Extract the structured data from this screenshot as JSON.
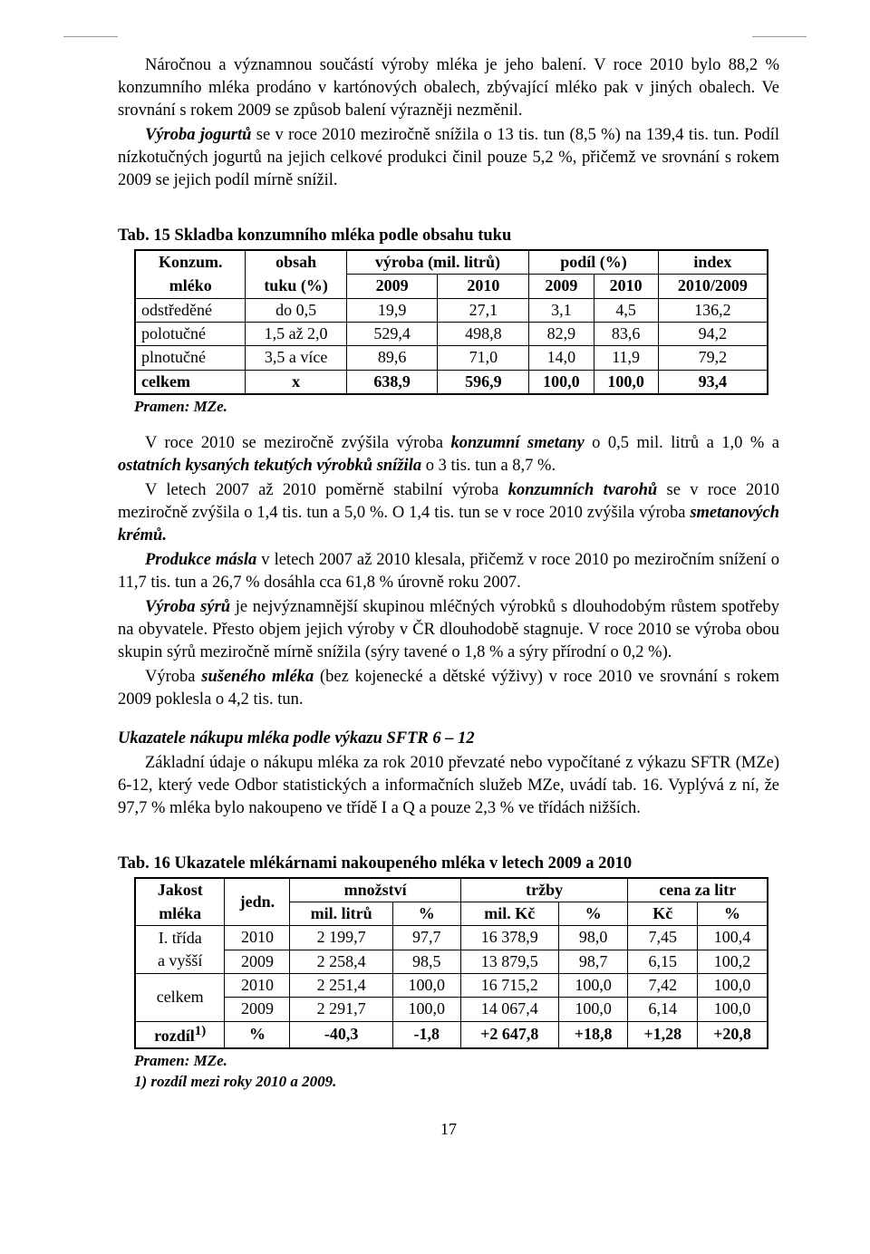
{
  "para1": "Náročnou a významnou součástí výroby mléka je jeho balení. V roce 2010 bylo 88,2 % konzumního mléka prodáno v kartónových obalech, zbývající mléko pak v jiných obalech. Ve srovnání s rokem 2009 se způsob balení výrazněji nezměnil.",
  "para2_pre": "",
  "para2_em1": "Výroba jogurtů",
  "para2_rest": " se v roce 2010 meziročně snížila o 13 tis. tun (8,5 %) na 139,4 tis. tun. Podíl nízkotučných jogurtů na jejich celkové produkci činil pouze 5,2 %, přičemž ve srovnání s rokem 2009 se jejich podíl mírně snížil.",
  "t15_title": "Tab. 15  Skladba konzumního mléka podle obsahu tuku",
  "t15": {
    "h1_col1a": "Konzum.",
    "h1_col1b": "mléko",
    "h1_col2a": "obsah",
    "h1_col2b": "tuku (%)",
    "h1_prod": "výroba (mil. litrů)",
    "h1_share": "podíl (%)",
    "h1_index": "index",
    "h2_2009": "2009",
    "h2_2010": "2010",
    "h2_index": "2010/2009",
    "rows": [
      {
        "name": "odstředěné",
        "fat": "do 0,5",
        "p09": "19,9",
        "p10": "27,1",
        "s09": "3,1",
        "s10": "4,5",
        "idx": "136,2"
      },
      {
        "name": "polotučné",
        "fat": "1,5 až 2,0",
        "p09": "529,4",
        "p10": "498,8",
        "s09": "82,9",
        "s10": "83,6",
        "idx": "94,2"
      },
      {
        "name": "plnotučné",
        "fat": "3,5 a více",
        "p09": "89,6",
        "p10": "71,0",
        "s09": "14,0",
        "s10": "11,9",
        "idx": "79,2"
      }
    ],
    "total": {
      "name": "celkem",
      "fat": "x",
      "p09": "638,9",
      "p10": "596,9",
      "s09": "100,0",
      "s10": "100,0",
      "idx": "93,4"
    }
  },
  "source": "Pramen: MZe.",
  "para3_a": "V roce 2010 se meziročně zvýšila výroba ",
  "para3_em1": "konzumní smetany",
  "para3_b": " o 0,5 mil. litrů a 1,0 % a ",
  "para3_em2": "ostatních kysaných tekutých výrobků snížila",
  "para3_c": " o 3 tis. tun a 8,7 %.",
  "para4_a": "V letech 2007 až 2010 poměrně stabilní výroba ",
  "para4_em1": "konzumních tvarohů",
  "para4_b": " se v roce 2010 meziročně zvýšila o 1,4 tis. tun a 5,0 %. O 1,4 tis. tun se v roce 2010 zvýšila výroba ",
  "para4_em2": "smetanových krémů.",
  "para5_em1": "Produkce másla",
  "para5_rest": " v letech 2007 až 2010 klesala, přičemž v roce 2010 po meziročním snížení o 11,7 tis. tun a 26,7 % dosáhla cca 61,8 % úrovně roku 2007.",
  "para6_em1": "Výroba sýrů",
  "para6_rest": " je nejvýznamnější skupinou mléčných výrobků s dlouhodobým růstem spotřeby na obyvatele. Přesto objem jejich výroby v ČR dlouhodobě stagnuje. V roce 2010 se výroba obou skupin sýrů meziročně mírně snížila (sýry tavené o 1,8 % a sýry přírodní o 0,2 %).",
  "para7_a": "Výroba ",
  "para7_em1": "sušeného mléka",
  "para7_b": " (bez kojenecké a dětské výživy) v roce 2010 ve srovnání s rokem 2009 poklesla o 4,2 tis. tun.",
  "subhead": "Ukazatele nákupu mléka podle výkazu SFTR 6 – 12",
  "para8": "Základní údaje o nákupu mléka za rok 2010 převzaté nebo vypočítané z výkazu SFTR (MZe) 6-12, který vede Odbor statistických a informačních služeb MZe, uvádí tab. 16. Vyplývá z ní, že 97,7 % mléka bylo nakoupeno ve třídě I a Q a pouze 2,3 % ve třídách nižších.",
  "t16_title": "Tab. 16  Ukazatele mlékárnami nakoupeného mléka v letech 2009 a 2010",
  "t16": {
    "h_quality_a": "Jakost",
    "h_quality_b": "mléka",
    "h_unit": "jedn.",
    "h_qty": "množství",
    "h_rev": "tržby",
    "h_price": "cena za litr",
    "h_mill": "mil. litrů",
    "h_pct": "%",
    "h_milkc": "mil. Kč",
    "h_kc": "Kč",
    "rows": [
      {
        "q": "I. třída",
        "u": "2010",
        "ml": "2 199,7",
        "mlp": "97,7",
        "mk": "16 378,9",
        "mkp": "98,0",
        "kc": "7,45",
        "kcp": "100,4"
      },
      {
        "q": "a vyšší",
        "u": "2009",
        "ml": "2 258,4",
        "mlp": "98,5",
        "mk": "13 879,5",
        "mkp": "98,7",
        "kc": "6,15",
        "kcp": "100,2"
      },
      {
        "q": "celkem",
        "u": "2010",
        "ml": "2 251,4",
        "mlp": "100,0",
        "mk": "16 715,2",
        "mkp": "100,0",
        "kc": "7,42",
        "kcp": "100,0"
      },
      {
        "q": "",
        "u": "2009",
        "ml": "2 291,7",
        "mlp": "100,0",
        "mk": "14 067,4",
        "mkp": "100,0",
        "kc": "6,14",
        "kcp": "100,0"
      }
    ],
    "diff": {
      "label": "rozdíl",
      "sup": "1)",
      "u": "%",
      "ml": "-40,3",
      "mlp": "-1,8",
      "mk": "+2 647,8",
      "mkp": "+18,8",
      "kc": "+1,28",
      "kcp": "+20,8"
    }
  },
  "footnote": "1)  rozdíl mezi roky 2010 a 2009.",
  "page_num": "17"
}
